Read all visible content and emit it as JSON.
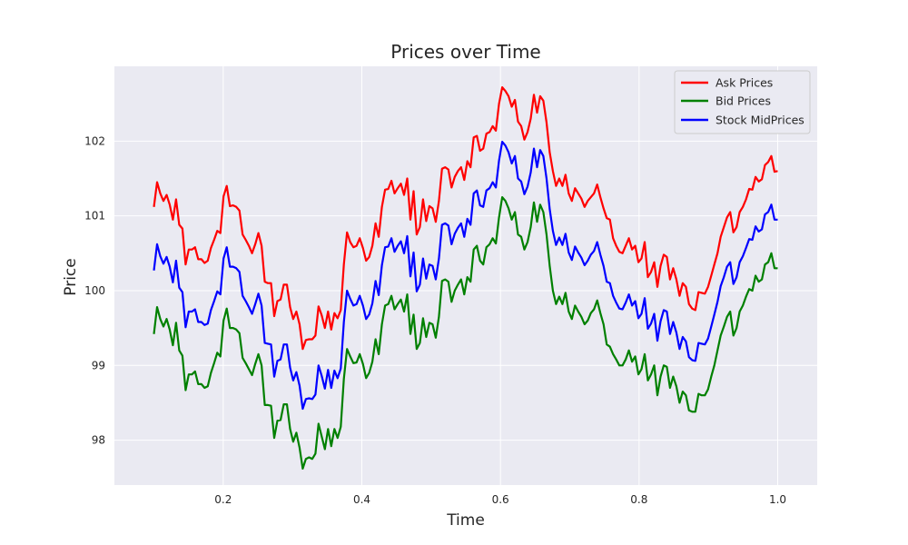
{
  "chart_data": {
    "type": "line",
    "title": "Prices over Time",
    "xlabel": "Time",
    "ylabel": "Price",
    "xlim": [
      0.043,
      1.057
    ],
    "ylim": [
      97.4,
      103.0
    ],
    "xticks": [
      0.2,
      0.4,
      0.6,
      0.8,
      1.0
    ],
    "xtick_labels": [
      "0.2",
      "0.4",
      "0.6",
      "0.8",
      "1.0"
    ],
    "yticks": [
      98,
      99,
      100,
      101,
      102
    ],
    "ytick_labels": [
      "98",
      "99",
      "100",
      "101",
      "102"
    ],
    "grid": true,
    "background": "#eaeaf2",
    "legend_position": "upper right",
    "x_start": 0.1,
    "x_end": 1.0,
    "spread_bid_offset": 1.3,
    "series": [
      {
        "name": "Ask Prices",
        "color": "#ff0000",
        "values": [
          101.12,
          101.45,
          101.3,
          101.2,
          101.28,
          101.15,
          100.95,
          101.22,
          100.88,
          100.83,
          100.35,
          100.55,
          100.55,
          100.58,
          100.42,
          100.42,
          100.37,
          100.4,
          100.57,
          100.68,
          100.8,
          100.77,
          101.26,
          101.4,
          101.13,
          101.14,
          101.12,
          101.07,
          100.75,
          100.68,
          100.6,
          100.5,
          100.62,
          100.77,
          100.6,
          100.12,
          100.1,
          100.1,
          99.66,
          99.86,
          99.88,
          100.08,
          100.08,
          99.78,
          99.62,
          99.72,
          99.55,
          99.22,
          99.34,
          99.35,
          99.35,
          99.4,
          99.79,
          99.67,
          99.5,
          99.72,
          99.48,
          99.7,
          99.63,
          99.74,
          100.35,
          100.78,
          100.65,
          100.58,
          100.6,
          100.7,
          100.57,
          100.4,
          100.45,
          100.6,
          100.9,
          100.72,
          101.12,
          101.35,
          101.36,
          101.47,
          101.3,
          101.37,
          101.43,
          101.28,
          101.5,
          100.95,
          101.33,
          100.75,
          100.85,
          101.22,
          100.93,
          101.13,
          101.1,
          100.92,
          101.2,
          101.63,
          101.65,
          101.62,
          101.38,
          101.52,
          101.6,
          101.65,
          101.48,
          101.73,
          101.65,
          102.05,
          102.07,
          101.87,
          101.9,
          102.1,
          102.12,
          102.2,
          102.14,
          102.5,
          102.72,
          102.67,
          102.6,
          102.46,
          102.55,
          102.26,
          102.2,
          102.02,
          102.12,
          102.3,
          102.62,
          102.38,
          102.6,
          102.54,
          102.25,
          101.85,
          101.6,
          101.4,
          101.5,
          101.4,
          101.55,
          101.3,
          101.2,
          101.37,
          101.3,
          101.23,
          101.12,
          101.2,
          101.25,
          101.3,
          101.42,
          101.25,
          101.1,
          100.97,
          100.95,
          100.7,
          100.6,
          100.52,
          100.5,
          100.6,
          100.7,
          100.55,
          100.6,
          100.38,
          100.43,
          100.65,
          100.18,
          100.25,
          100.38,
          100.05,
          100.33,
          100.48,
          100.45,
          100.15,
          100.3,
          100.15,
          99.93,
          100.1,
          100.05,
          99.82,
          99.76,
          99.74,
          99.98,
          99.97,
          99.96,
          100.05,
          100.2,
          100.35,
          100.5,
          100.72,
          100.85,
          100.98,
          101.05,
          100.78,
          100.85,
          101.05,
          101.12,
          101.22,
          101.36,
          101.35,
          101.52,
          101.46,
          101.49,
          101.68,
          101.72,
          101.8,
          101.59,
          101.6
        ]
      },
      {
        "name": "Bid Prices",
        "color": "#008000",
        "values": [
          99.42,
          99.78,
          99.62,
          99.52,
          99.62,
          99.48,
          99.27,
          99.57,
          99.2,
          99.13,
          98.67,
          98.88,
          98.88,
          98.92,
          98.75,
          98.75,
          98.7,
          98.72,
          98.9,
          99.03,
          99.17,
          99.12,
          99.6,
          99.76,
          99.5,
          99.5,
          99.48,
          99.43,
          99.1,
          99.03,
          98.95,
          98.87,
          99.02,
          99.15,
          99.0,
          98.47,
          98.47,
          98.46,
          98.03,
          98.26,
          98.27,
          98.48,
          98.48,
          98.15,
          97.98,
          98.1,
          97.9,
          97.62,
          97.75,
          97.77,
          97.75,
          97.82,
          98.22,
          98.05,
          97.88,
          98.15,
          97.92,
          98.15,
          98.03,
          98.18,
          98.82,
          99.22,
          99.12,
          99.03,
          99.04,
          99.15,
          99.02,
          98.83,
          98.9,
          99.05,
          99.35,
          99.15,
          99.55,
          99.8,
          99.82,
          99.93,
          99.75,
          99.82,
          99.88,
          99.72,
          99.95,
          99.42,
          99.68,
          99.22,
          99.3,
          99.63,
          99.38,
          99.57,
          99.55,
          99.37,
          99.65,
          100.13,
          100.15,
          100.12,
          99.85,
          100.0,
          100.08,
          100.15,
          99.95,
          100.18,
          100.12,
          100.55,
          100.6,
          100.4,
          100.35,
          100.58,
          100.62,
          100.7,
          100.63,
          100.98,
          101.25,
          101.2,
          101.1,
          100.95,
          101.05,
          100.75,
          100.72,
          100.55,
          100.65,
          100.85,
          101.18,
          100.92,
          101.15,
          101.05,
          100.75,
          100.33,
          100.0,
          99.82,
          99.92,
          99.82,
          99.97,
          99.72,
          99.62,
          99.8,
          99.72,
          99.65,
          99.55,
          99.6,
          99.7,
          99.75,
          99.87,
          99.7,
          99.55,
          99.28,
          99.25,
          99.15,
          99.08,
          99.0,
          99.0,
          99.08,
          99.2,
          99.05,
          99.12,
          98.88,
          98.95,
          99.15,
          98.8,
          98.88,
          99.0,
          98.6,
          98.85,
          99.0,
          98.98,
          98.7,
          98.85,
          98.72,
          98.5,
          98.65,
          98.6,
          98.4,
          98.38,
          98.38,
          98.62,
          98.6,
          98.6,
          98.68,
          98.85,
          99.0,
          99.2,
          99.4,
          99.52,
          99.65,
          99.72,
          99.4,
          99.5,
          99.72,
          99.8,
          99.92,
          100.02,
          100.0,
          100.2,
          100.12,
          100.15,
          100.35,
          100.38,
          100.5,
          100.3,
          100.3
        ]
      },
      {
        "name": "Stock MidPrices",
        "color": "#0000ff",
        "values": [
          100.27,
          100.62,
          100.46,
          100.36,
          100.45,
          100.32,
          100.11,
          100.4,
          100.04,
          99.98,
          99.51,
          99.72,
          99.72,
          99.75,
          99.58,
          99.58,
          99.54,
          99.56,
          99.74,
          99.86,
          99.99,
          99.95,
          100.43,
          100.58,
          100.32,
          100.32,
          100.3,
          100.25,
          99.93,
          99.86,
          99.78,
          99.69,
          99.82,
          99.96,
          99.8,
          99.3,
          99.29,
          99.28,
          98.85,
          99.06,
          99.08,
          99.28,
          99.28,
          98.97,
          98.8,
          98.91,
          98.73,
          98.42,
          98.55,
          98.56,
          98.55,
          98.61,
          99.0,
          98.86,
          98.69,
          98.94,
          98.7,
          98.93,
          98.83,
          98.96,
          99.58,
          100.0,
          99.89,
          99.8,
          99.82,
          99.93,
          99.8,
          99.62,
          99.68,
          99.83,
          100.13,
          99.94,
          100.34,
          100.58,
          100.59,
          100.7,
          100.52,
          100.6,
          100.66,
          100.5,
          100.73,
          100.19,
          100.51,
          99.99,
          100.08,
          100.43,
          100.16,
          100.35,
          100.33,
          100.15,
          100.43,
          100.88,
          100.9,
          100.87,
          100.62,
          100.76,
          100.84,
          100.9,
          100.72,
          100.96,
          100.88,
          101.3,
          101.34,
          101.14,
          101.12,
          101.34,
          101.37,
          101.45,
          101.38,
          101.74,
          101.99,
          101.94,
          101.85,
          101.7,
          101.8,
          101.5,
          101.46,
          101.29,
          101.39,
          101.58,
          101.9,
          101.65,
          101.88,
          101.8,
          101.5,
          101.09,
          100.8,
          100.61,
          100.71,
          100.61,
          100.76,
          100.51,
          100.41,
          100.59,
          100.51,
          100.44,
          100.34,
          100.4,
          100.48,
          100.53,
          100.65,
          100.48,
          100.33,
          100.12,
          100.1,
          99.93,
          99.84,
          99.76,
          99.75,
          99.84,
          99.95,
          99.8,
          99.86,
          99.63,
          99.69,
          99.9,
          99.49,
          99.56,
          99.69,
          99.33,
          99.59,
          99.74,
          99.72,
          99.42,
          99.58,
          99.44,
          99.22,
          99.38,
          99.32,
          99.11,
          99.07,
          99.06,
          99.3,
          99.29,
          99.28,
          99.36,
          99.52,
          99.68,
          99.85,
          100.06,
          100.18,
          100.32,
          100.38,
          100.09,
          100.18,
          100.38,
          100.46,
          100.57,
          100.69,
          100.68,
          100.86,
          100.79,
          100.82,
          101.02,
          101.05,
          101.15,
          100.95,
          100.95
        ]
      }
    ]
  }
}
